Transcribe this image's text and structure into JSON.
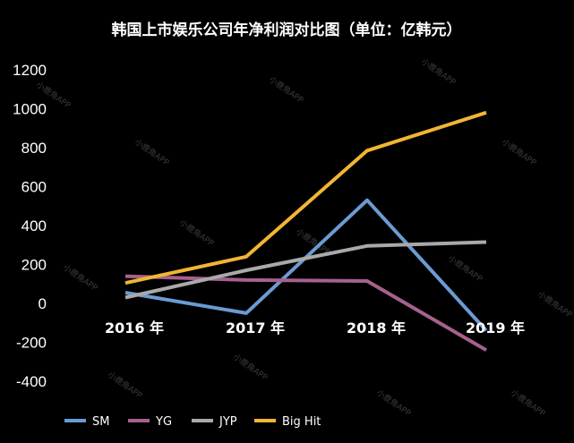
{
  "watermark": "小鹿角APP",
  "chart_data": {
    "type": "line",
    "title": "韩国上市娱乐公司年净利润对比图（单位：亿韩元）",
    "categories": [
      "2016 年",
      "2017 年",
      "2018 年",
      "2019 年"
    ],
    "ylim": [
      -400,
      1200
    ],
    "yticks": [
      "1200",
      "1000",
      "800",
      "600",
      "400",
      "200",
      "0",
      "-200",
      "-400"
    ],
    "ytick_values": [
      1200,
      1000,
      800,
      600,
      400,
      200,
      0,
      -200,
      -400
    ],
    "grid": false,
    "legend_position": "bottom-left",
    "series": [
      {
        "name": "SM",
        "color": "#6b9bd2",
        "values": [
          55,
          -50,
          530,
          -140
        ]
      },
      {
        "name": "YG",
        "color": "#a6618e",
        "values": [
          140,
          120,
          115,
          -240
        ]
      },
      {
        "name": "JYP",
        "color": "#a9a9a9",
        "values": [
          30,
          170,
          295,
          315
        ]
      },
      {
        "name": "Big Hit",
        "color": "#f2b534",
        "values": [
          105,
          240,
          785,
          980
        ]
      }
    ]
  }
}
